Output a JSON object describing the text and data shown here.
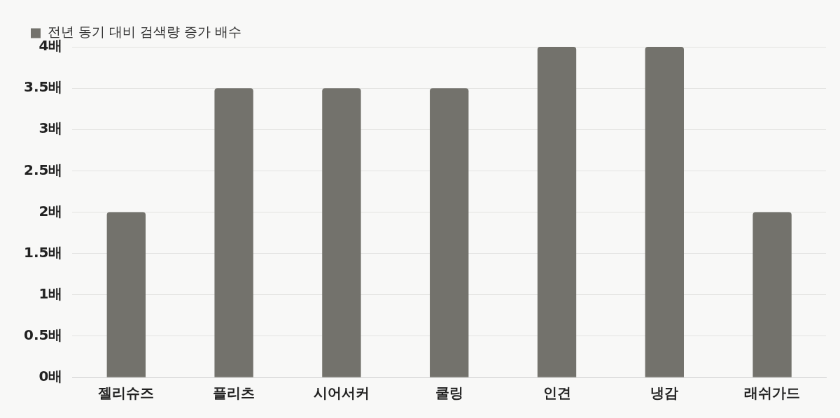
{
  "chart_data": {
    "type": "bar",
    "categories": [
      "젤리슈즈",
      "플리츠",
      "시어서커",
      "쿨링",
      "인견",
      "냉감",
      "래쉬가드"
    ],
    "series": [
      {
        "name": "전년 동기 대비 검색량 증가 배수",
        "color": "#73726c",
        "values": [
          2,
          3.5,
          3.5,
          3.5,
          4,
          4,
          2
        ]
      }
    ],
    "ylim": [
      0,
      4
    ],
    "yticks": [
      {
        "value": 0,
        "label": "0배"
      },
      {
        "value": 0.5,
        "label": "0.5배"
      },
      {
        "value": 1,
        "label": "1배"
      },
      {
        "value": 1.5,
        "label": "1.5배"
      },
      {
        "value": 2,
        "label": "2배"
      },
      {
        "value": 2.5,
        "label": "2.5배"
      },
      {
        "value": 3,
        "label": "3배"
      },
      {
        "value": 3.5,
        "label": "3.5배"
      },
      {
        "value": 4,
        "label": "4배"
      }
    ],
    "grid": "y",
    "legend": "top left"
  }
}
